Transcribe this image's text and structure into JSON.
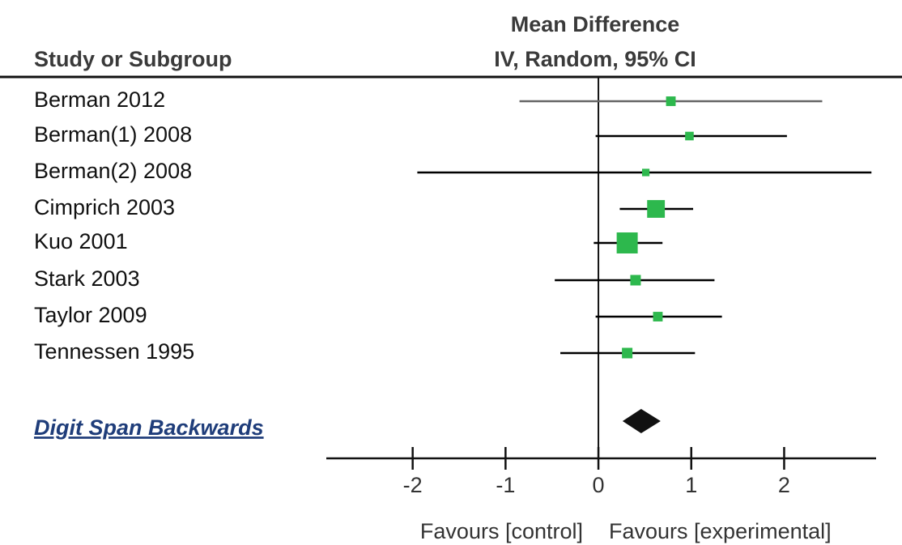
{
  "chart_data": {
    "type": "forest",
    "header": {
      "title": "Mean Difference",
      "subtitle": "IV, Random, 95% CI",
      "label_column": "Study or Subgroup"
    },
    "categories": [
      "Berman 2012",
      "Berman(1) 2008",
      "Berman(2) 2008",
      "Cimprich 2003",
      "Kuo 2001",
      "Stark 2003",
      "Taylor 2009",
      "Tennessen 1995"
    ],
    "values": [
      0.78,
      0.98,
      0.51,
      0.62,
      0.31,
      0.4,
      0.64,
      0.31
    ],
    "ci_lower": [
      -0.85,
      -0.03,
      -1.95,
      0.23,
      -0.05,
      -0.47,
      -0.03,
      -0.41
    ],
    "ci_upper": [
      2.41,
      2.03,
      2.94,
      1.02,
      0.69,
      1.25,
      1.33,
      1.04
    ],
    "weights": [
      5,
      4,
      3,
      17,
      24,
      6,
      5,
      6
    ],
    "line_colors": [
      "#666666",
      "#000000",
      "#000000",
      "#000000",
      "#000000",
      "#000000",
      "#000000",
      "#000000"
    ],
    "color": "#2db84d",
    "overall": {
      "name": "Digit Span Backwards",
      "value": 0.46,
      "ci_lower": 0.26,
      "ci_upper": 0.67,
      "color": "#111111"
    },
    "xlim": [
      -2.93,
      2.99
    ],
    "xticks": [
      -2,
      -1,
      0,
      1,
      2
    ],
    "xlabel_left": "Favours [control]",
    "xlabel_right": "Favours [experimental]"
  }
}
